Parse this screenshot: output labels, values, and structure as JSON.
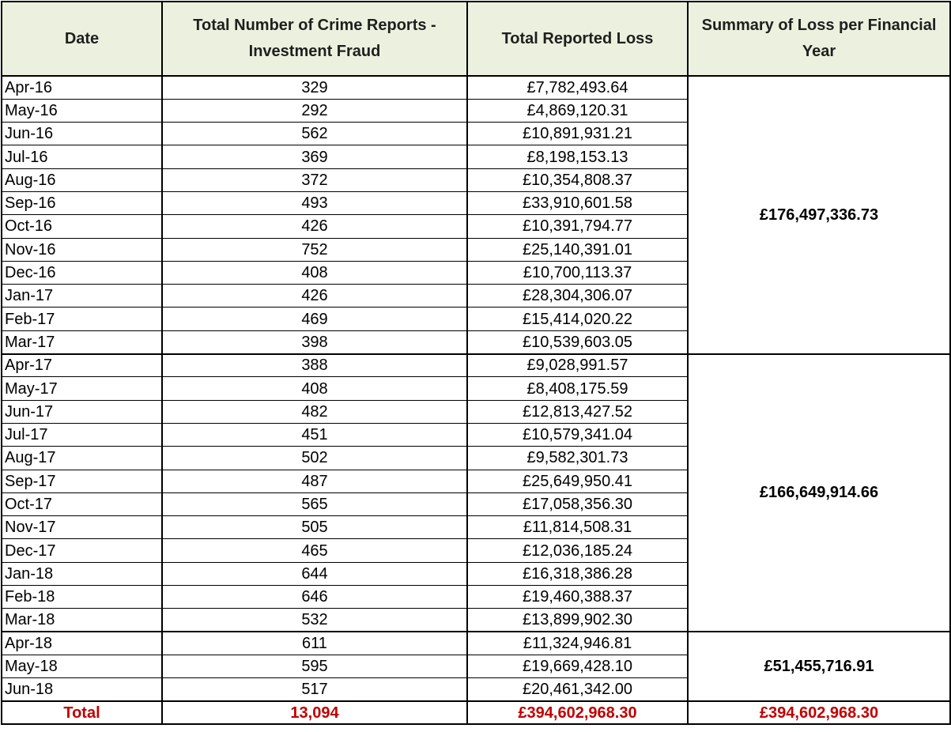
{
  "headers": {
    "date": "Date",
    "reports": "Total Number of Crime Reports - Investment Fraud",
    "loss": "Total Reported Loss",
    "summary": "Summary of Loss per Financial Year"
  },
  "rows": [
    {
      "date": "Apr-16",
      "reports": "329",
      "loss": "£7,782,493.64"
    },
    {
      "date": "May-16",
      "reports": "292",
      "loss": "£4,869,120.31"
    },
    {
      "date": "Jun-16",
      "reports": "562",
      "loss": "£10,891,931.21"
    },
    {
      "date": "Jul-16",
      "reports": "369",
      "loss": "£8,198,153.13"
    },
    {
      "date": "Aug-16",
      "reports": "372",
      "loss": "£10,354,808.37"
    },
    {
      "date": "Sep-16",
      "reports": "493",
      "loss": "£33,910,601.58"
    },
    {
      "date": "Oct-16",
      "reports": "426",
      "loss": "£10,391,794.77"
    },
    {
      "date": "Nov-16",
      "reports": "752",
      "loss": "£25,140,391.01"
    },
    {
      "date": "Dec-16",
      "reports": "408",
      "loss": "£10,700,113.37"
    },
    {
      "date": "Jan-17",
      "reports": "426",
      "loss": "£28,304,306.07"
    },
    {
      "date": "Feb-17",
      "reports": "469",
      "loss": "£15,414,020.22"
    },
    {
      "date": "Mar-17",
      "reports": "398",
      "loss": "£10,539,603.05"
    },
    {
      "date": "Apr-17",
      "reports": "388",
      "loss": "£9,028,991.57"
    },
    {
      "date": "May-17",
      "reports": "408",
      "loss": "£8,408,175.59"
    },
    {
      "date": "Jun-17",
      "reports": "482",
      "loss": "£12,813,427.52"
    },
    {
      "date": "Jul-17",
      "reports": "451",
      "loss": "£10,579,341.04"
    },
    {
      "date": "Aug-17",
      "reports": "502",
      "loss": "£9,582,301.73"
    },
    {
      "date": "Sep-17",
      "reports": "487",
      "loss": "£25,649,950.41"
    },
    {
      "date": "Oct-17",
      "reports": "565",
      "loss": "£17,058,356.30"
    },
    {
      "date": "Nov-17",
      "reports": "505",
      "loss": "£11,814,508.31"
    },
    {
      "date": "Dec-17",
      "reports": "465",
      "loss": "£12,036,185.24"
    },
    {
      "date": "Jan-18",
      "reports": "644",
      "loss": "£16,318,386.28"
    },
    {
      "date": "Feb-18",
      "reports": "646",
      "loss": "£19,460,388.37"
    },
    {
      "date": "Mar-18",
      "reports": "532",
      "loss": "£13,899,902.30"
    },
    {
      "date": "Apr-18",
      "reports": "611",
      "loss": "£11,324,946.81"
    },
    {
      "date": "May-18",
      "reports": "595",
      "loss": "£19,669,428.10"
    },
    {
      "date": "Jun-18",
      "reports": "517",
      "loss": "£20,461,342.00"
    }
  ],
  "financial_years": [
    {
      "summary": "£176,497,336.73"
    },
    {
      "summary": "£166,649,914.66"
    },
    {
      "summary": "£51,455,716.91"
    }
  ],
  "total": {
    "label": "Total",
    "reports": "13,094",
    "loss": "£394,602,968.30",
    "summary": "£394,602,968.30"
  },
  "colors": {
    "header_bg": "#ebf1de",
    "total_text": "#c00000"
  }
}
